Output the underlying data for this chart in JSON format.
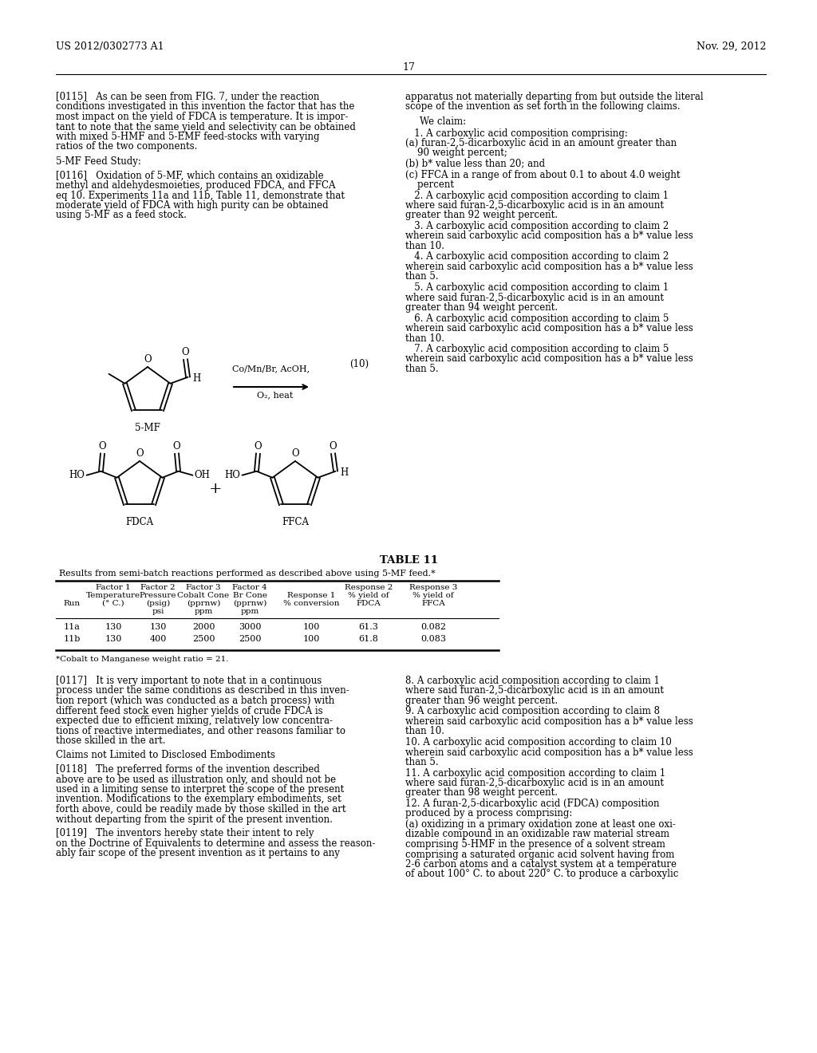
{
  "background_color": "#ffffff",
  "page_number": "17",
  "header_left": "US 2012/0302773 A1",
  "header_right": "Nov. 29, 2012",
  "table_title": "TABLE 11",
  "table_subtitle": "Results from semi-batch reactions performed as described above using 5-MF feed.*",
  "table_data": [
    [
      "11a",
      "130",
      "130",
      "2000",
      "3000",
      "100",
      "61.3",
      "0.082"
    ],
    [
      "11b",
      "130",
      "400",
      "2500",
      "2500",
      "100",
      "61.8",
      "0.083"
    ]
  ],
  "table_footnote": "*Cobalt to Manganese weight ratio = 21.",
  "reaction_eq_number": "(10)"
}
